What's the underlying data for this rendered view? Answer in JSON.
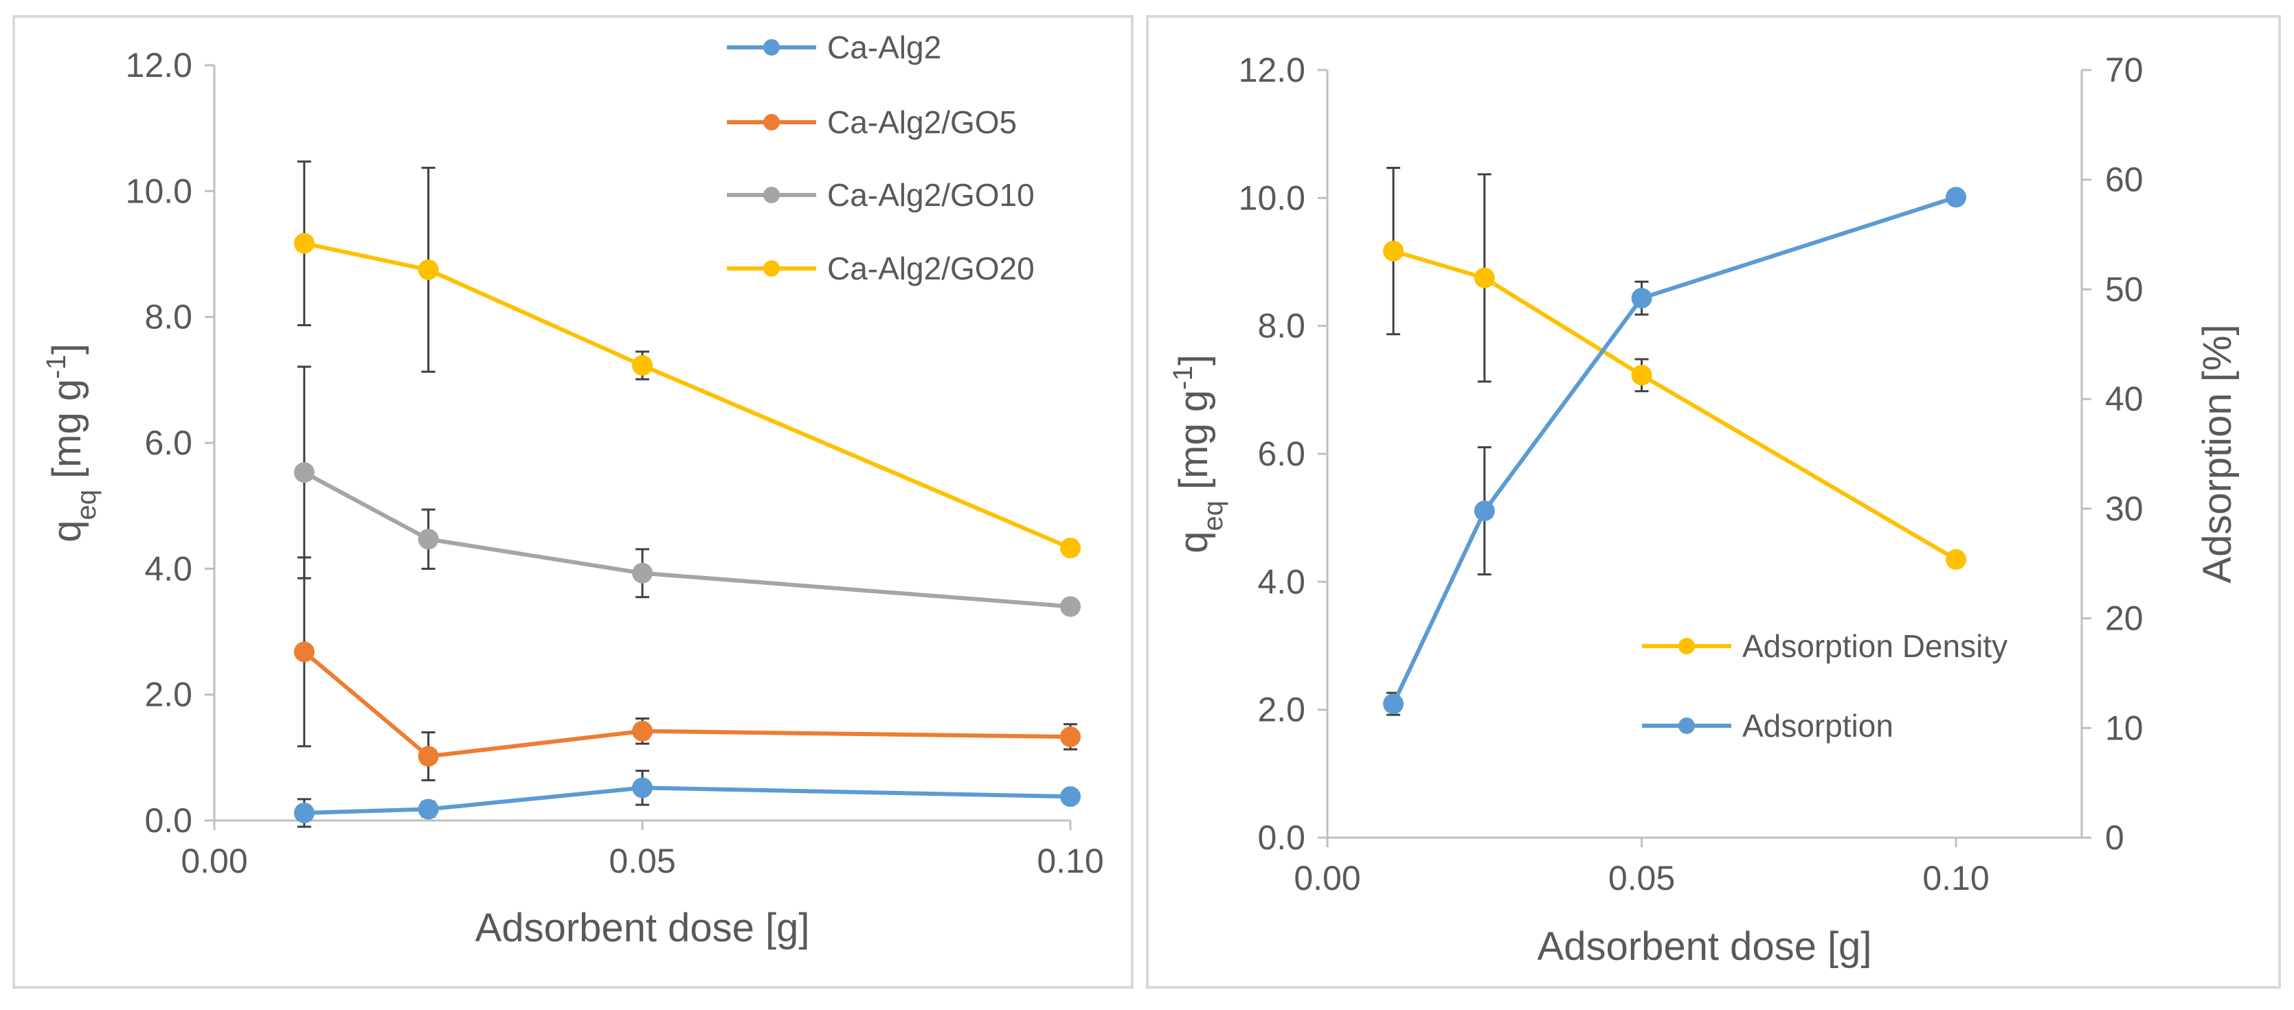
{
  "chart_data": [
    {
      "type": "line",
      "title": "",
      "xlabel": "Adsorbent dose [g]",
      "ylabel": {
        "base": "q",
        "sub": "eq",
        "unit_pre": " [mg g",
        "sup": "-1",
        "unit_post": "]"
      },
      "xlim": [
        0,
        0.1
      ],
      "ylim": [
        0,
        12
      ],
      "xticks": [
        "0.00",
        "0.05",
        "0.10"
      ],
      "xtick_values": [
        0,
        0.05,
        0.1
      ],
      "yticks": [
        "0.0",
        "2.0",
        "4.0",
        "6.0",
        "8.0",
        "10.0",
        "12.0"
      ],
      "ytick_values": [
        0,
        2,
        4,
        6,
        8,
        10,
        12
      ],
      "grid": false,
      "legend_position": "top-right",
      "x": [
        0.0105,
        0.025,
        0.05,
        0.1
      ],
      "series": [
        {
          "name": "Ca-Alg2",
          "color": "#5b9bd5",
          "values": [
            0.12,
            0.18,
            0.52,
            0.38
          ],
          "errors": [
            0.22,
            0.12,
            0.27,
            0.04
          ]
        },
        {
          "name": "Ca-Alg2/GO5",
          "color": "#ed7d31",
          "values": [
            2.68,
            1.02,
            1.42,
            1.33
          ],
          "errors": [
            1.5,
            0.38,
            0.2,
            0.2
          ]
        },
        {
          "name": "Ca-Alg2/GO10",
          "color": "#a5a5a5",
          "values": [
            5.53,
            4.47,
            3.93,
            3.4
          ],
          "errors": [
            1.68,
            0.47,
            0.38,
            0.05
          ]
        },
        {
          "name": "Ca-Alg2/GO20",
          "color": "#ffc000",
          "values": [
            9.17,
            8.75,
            7.23,
            4.33
          ],
          "errors": [
            1.3,
            1.62,
            0.22,
            0.07
          ]
        }
      ]
    },
    {
      "type": "line",
      "title": "",
      "xlabel": "Adsorbent dose [g]",
      "ylabel": {
        "base": "q",
        "sub": "eq",
        "unit_pre": " [mg g",
        "sup": "-1",
        "unit_post": "]"
      },
      "y2label": "Adsorption [%]",
      "xlim": [
        0,
        0.12
      ],
      "ylim": [
        0,
        12
      ],
      "y2lim": [
        0,
        70
      ],
      "xticks": [
        "0.00",
        "0.05",
        "0.10"
      ],
      "xtick_values": [
        0,
        0.05,
        0.1
      ],
      "yticks": [
        "0.0",
        "2.0",
        "4.0",
        "6.0",
        "8.0",
        "10.0",
        "12.0"
      ],
      "ytick_values": [
        0,
        2,
        4,
        6,
        8,
        10,
        12
      ],
      "y2ticks": [
        "0",
        "10",
        "20",
        "30",
        "40",
        "50",
        "60",
        "70"
      ],
      "y2tick_values": [
        0,
        10,
        20,
        30,
        40,
        50,
        60,
        70
      ],
      "grid": false,
      "legend_position": "bottom-right",
      "x": [
        0.0105,
        0.025,
        0.05,
        0.1
      ],
      "series": [
        {
          "name": "Adsorption Density",
          "axis": "left",
          "color": "#ffc000",
          "values": [
            9.17,
            8.75,
            7.23,
            4.35
          ],
          "errors": [
            1.3,
            1.62,
            0.25,
            0.07
          ]
        },
        {
          "name": "Adsorption",
          "axis": "right",
          "color": "#5b9bd5",
          "values": [
            12.2,
            29.8,
            49.2,
            58.4
          ],
          "errors": [
            1.0,
            5.8,
            1.5,
            0.5
          ]
        }
      ]
    }
  ]
}
